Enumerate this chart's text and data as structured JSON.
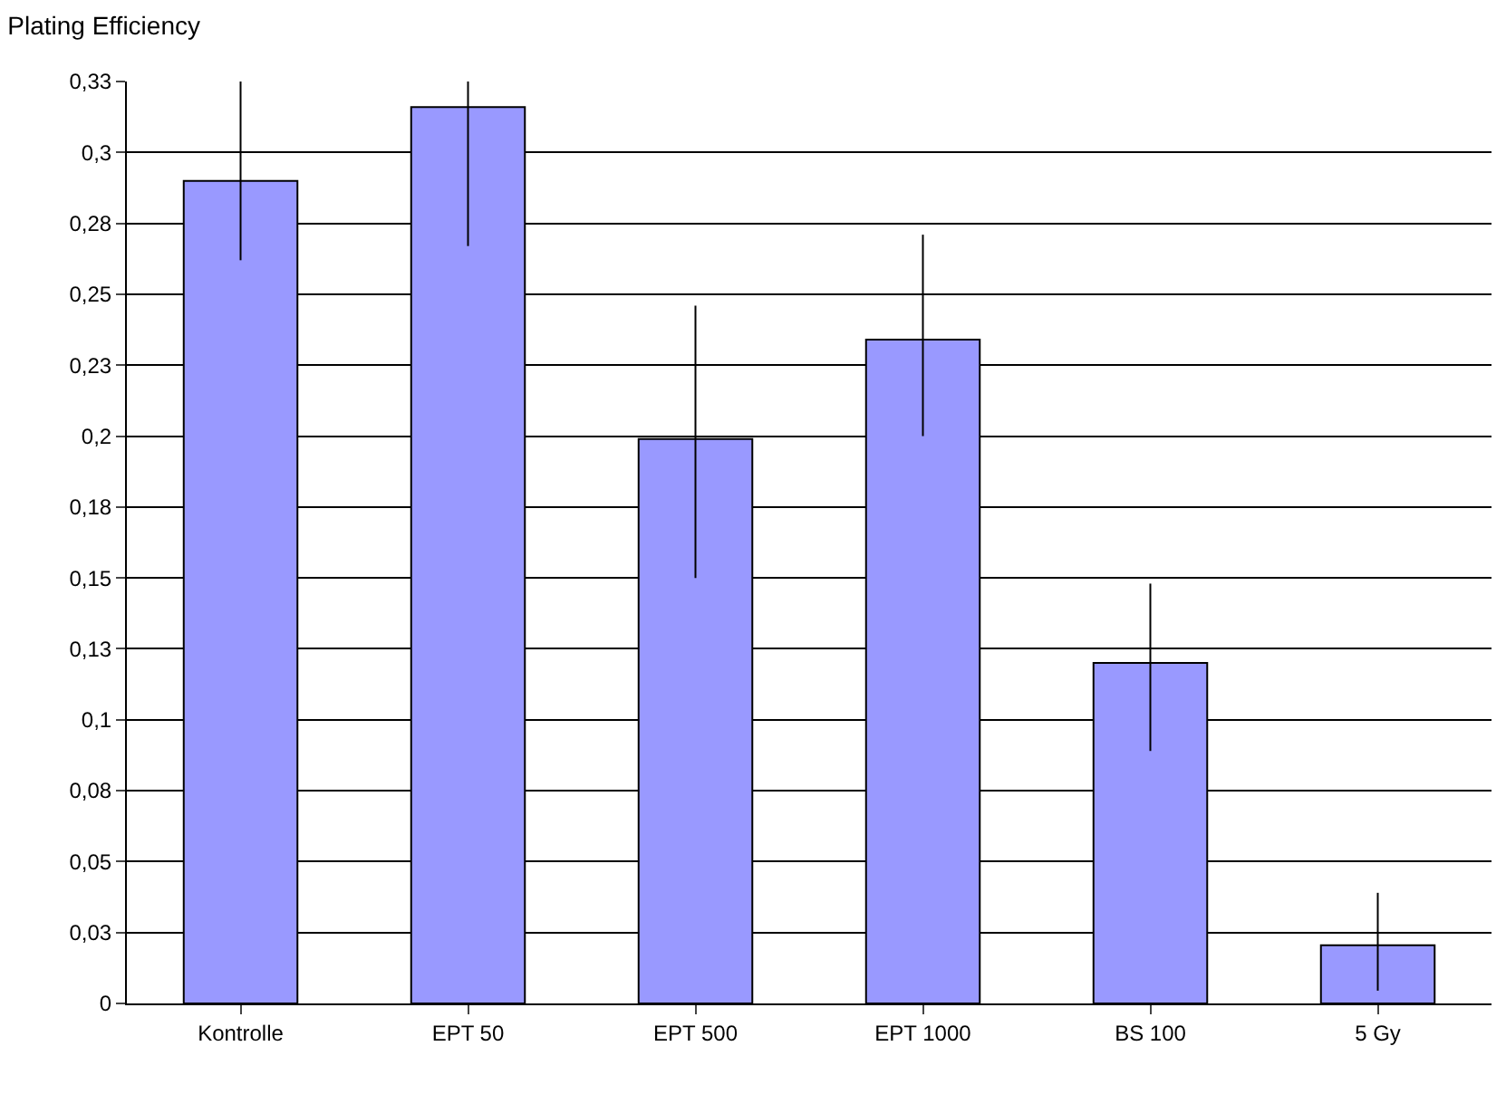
{
  "chart_data": {
    "type": "bar",
    "title": "Plating Efficiency",
    "categories": [
      "Kontrolle",
      "EPT 50",
      "EPT 500",
      "EPT 1000",
      "BS 100",
      "5 Gy"
    ],
    "values": [
      0.29,
      0.316,
      0.199,
      0.234,
      0.12,
      0.0205
    ],
    "errors": [
      [
        0.262,
        0.325
      ],
      [
        0.267,
        0.325
      ],
      [
        0.15,
        0.246
      ],
      [
        0.2,
        0.271
      ],
      [
        0.089,
        0.148
      ],
      [
        0.0045,
        0.039
      ]
    ],
    "color": "#9999ff",
    "ylim": [
      0,
      0.325
    ],
    "yticks": [
      0,
      {
        "value": 0.025,
        "label": "0,03"
      },
      {
        "value": 0.05,
        "label": "0,05"
      },
      {
        "value": 0.075,
        "label": "0,08"
      },
      {
        "value": 0.1,
        "label": "0,1"
      },
      {
        "value": 0.125,
        "label": "0,13"
      },
      {
        "value": 0.15,
        "label": "0,15"
      },
      {
        "value": 0.175,
        "label": "0,18"
      },
      {
        "value": 0.2,
        "label": "0,2"
      },
      {
        "value": 0.225,
        "label": "0,23"
      },
      {
        "value": 0.25,
        "label": "0,25"
      },
      {
        "value": 0.275,
        "label": "0,28"
      },
      {
        "value": 0.3,
        "label": "0,3"
      },
      {
        "value": 0.325,
        "label": "0,33"
      }
    ],
    "grid": "y",
    "legend": false
  }
}
